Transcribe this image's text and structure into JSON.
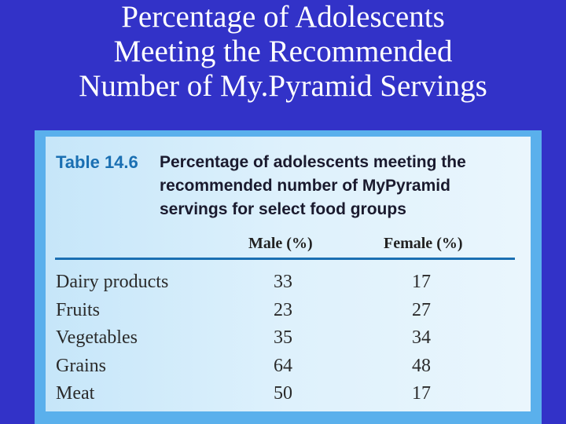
{
  "slide": {
    "title_lines": [
      "Percentage of Adolescents",
      "Meeting the Recommended",
      "Number of My.Pyramid Servings"
    ]
  },
  "table": {
    "label": "Table 14.6",
    "caption_lines": [
      "Percentage of adolescents meeting the",
      "recommended number of MyPyramid",
      "servings for select food groups"
    ],
    "columns": [
      "Male (%)",
      "Female (%)"
    ],
    "rows": [
      {
        "label": "Dairy products",
        "male": "33",
        "female": "17"
      },
      {
        "label": "Fruits",
        "male": "23",
        "female": "27"
      },
      {
        "label": "Vegetables",
        "male": "35",
        "female": "34"
      },
      {
        "label": "Grains",
        "male": "64",
        "female": "48"
      },
      {
        "label": "Meat",
        "male": "50",
        "female": "17"
      }
    ]
  },
  "colors": {
    "slide_background": "#3232c8",
    "table_frame": "#5ab0ec",
    "table_label": "#1a6fb2"
  }
}
